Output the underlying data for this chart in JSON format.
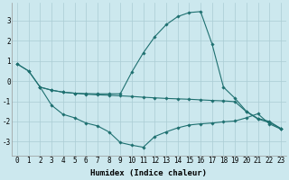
{
  "bg_color": "#cce8ee",
  "grid_color": "#aaccd4",
  "line_color": "#1e7070",
  "line_width": 0.8,
  "marker": "D",
  "marker_size": 1.8,
  "xlabel": "Humidex (Indice chaleur)",
  "xlabel_fontsize": 6.5,
  "tick_fontsize": 5.5,
  "xlim": [
    -0.5,
    23.5
  ],
  "ylim": [
    -3.7,
    3.9
  ],
  "yticks": [
    -3,
    -2,
    -1,
    0,
    1,
    2,
    3
  ],
  "xticks": [
    0,
    1,
    2,
    3,
    4,
    5,
    6,
    7,
    8,
    9,
    10,
    11,
    12,
    13,
    14,
    15,
    16,
    17,
    18,
    19,
    20,
    21,
    22,
    23
  ],
  "line1_x": [
    0,
    1,
    2,
    3,
    4,
    5,
    6,
    7,
    8,
    9,
    10,
    11,
    12,
    13,
    14,
    15,
    16,
    17,
    18,
    19,
    20,
    21,
    22,
    23
  ],
  "line1_y": [
    0.85,
    0.5,
    -0.3,
    -0.45,
    -0.55,
    -0.6,
    -0.62,
    -0.63,
    -0.63,
    -0.63,
    0.45,
    1.4,
    2.2,
    2.8,
    3.2,
    3.4,
    3.45,
    1.85,
    -0.3,
    -0.85,
    -1.5,
    -1.85,
    -2.0,
    -2.35
  ],
  "line2_x": [
    0,
    1,
    2,
    3,
    4,
    5,
    6,
    7,
    8,
    9,
    10,
    11,
    12,
    13,
    14,
    15,
    16,
    17,
    18,
    19,
    20,
    21,
    22,
    23
  ],
  "line2_y": [
    0.85,
    0.5,
    -0.3,
    -0.45,
    -0.55,
    -0.6,
    -0.65,
    -0.68,
    -0.7,
    -0.73,
    -0.76,
    -0.8,
    -0.83,
    -0.86,
    -0.88,
    -0.9,
    -0.93,
    -0.96,
    -0.98,
    -1.02,
    -1.52,
    -1.88,
    -2.05,
    -2.35
  ],
  "line3_x": [
    2,
    3,
    4,
    5,
    6,
    7,
    8,
    9,
    10,
    11,
    12,
    13,
    14,
    15,
    16,
    17,
    18,
    19,
    20,
    21,
    22,
    23
  ],
  "line3_y": [
    -0.3,
    -1.2,
    -1.65,
    -1.82,
    -2.08,
    -2.22,
    -2.52,
    -3.05,
    -3.18,
    -3.28,
    -2.75,
    -2.52,
    -2.32,
    -2.18,
    -2.12,
    -2.08,
    -2.02,
    -1.98,
    -1.82,
    -1.62,
    -2.12,
    -2.38
  ]
}
